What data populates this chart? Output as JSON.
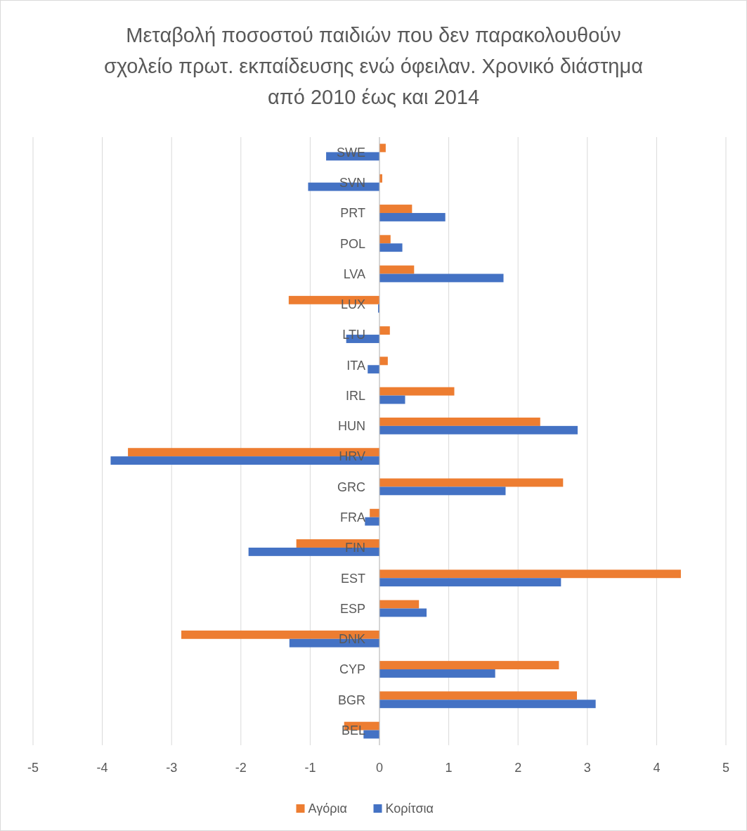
{
  "chart_data": {
    "type": "bar",
    "orientation": "horizontal",
    "title": "Μεταβολή ποσοστού παιδιών που δεν παρακολουθούν σχολείο πρωτ. εκπαίδευσης ενώ όφειλαν. Χρονικό διάστημα από 2010 έως και 2014",
    "categories": [
      "SWE",
      "SVN",
      "PRT",
      "POL",
      "LVA",
      "LUX",
      "LTU",
      "ITA",
      "IRL",
      "HUN",
      "HRV",
      "GRC",
      "FRA",
      "FIN",
      "EST",
      "ESP",
      "DNK",
      "CYP",
      "BGR",
      "BEL"
    ],
    "series": [
      {
        "name": "Αγόρια",
        "color": "#ed7d31",
        "values": [
          0.09,
          0.04,
          0.47,
          0.16,
          0.5,
          -1.31,
          0.15,
          0.12,
          1.08,
          2.32,
          -3.63,
          2.65,
          -0.14,
          -1.2,
          4.35,
          0.57,
          -2.86,
          2.59,
          2.85,
          -0.51
        ]
      },
      {
        "name": "Κορίτσια",
        "color": "#4472c4",
        "values": [
          -0.77,
          -1.03,
          0.95,
          0.33,
          1.79,
          -0.02,
          -0.48,
          -0.17,
          0.37,
          2.86,
          -3.88,
          1.82,
          -0.21,
          -1.89,
          2.62,
          0.68,
          -1.3,
          1.67,
          3.12,
          -0.23
        ]
      }
    ],
    "xlim": [
      -5,
      5
    ],
    "xticks": [
      -5,
      -4,
      -3,
      -2,
      -1,
      0,
      1,
      2,
      3,
      4,
      5
    ],
    "grid": "x",
    "legend": "bottom"
  }
}
